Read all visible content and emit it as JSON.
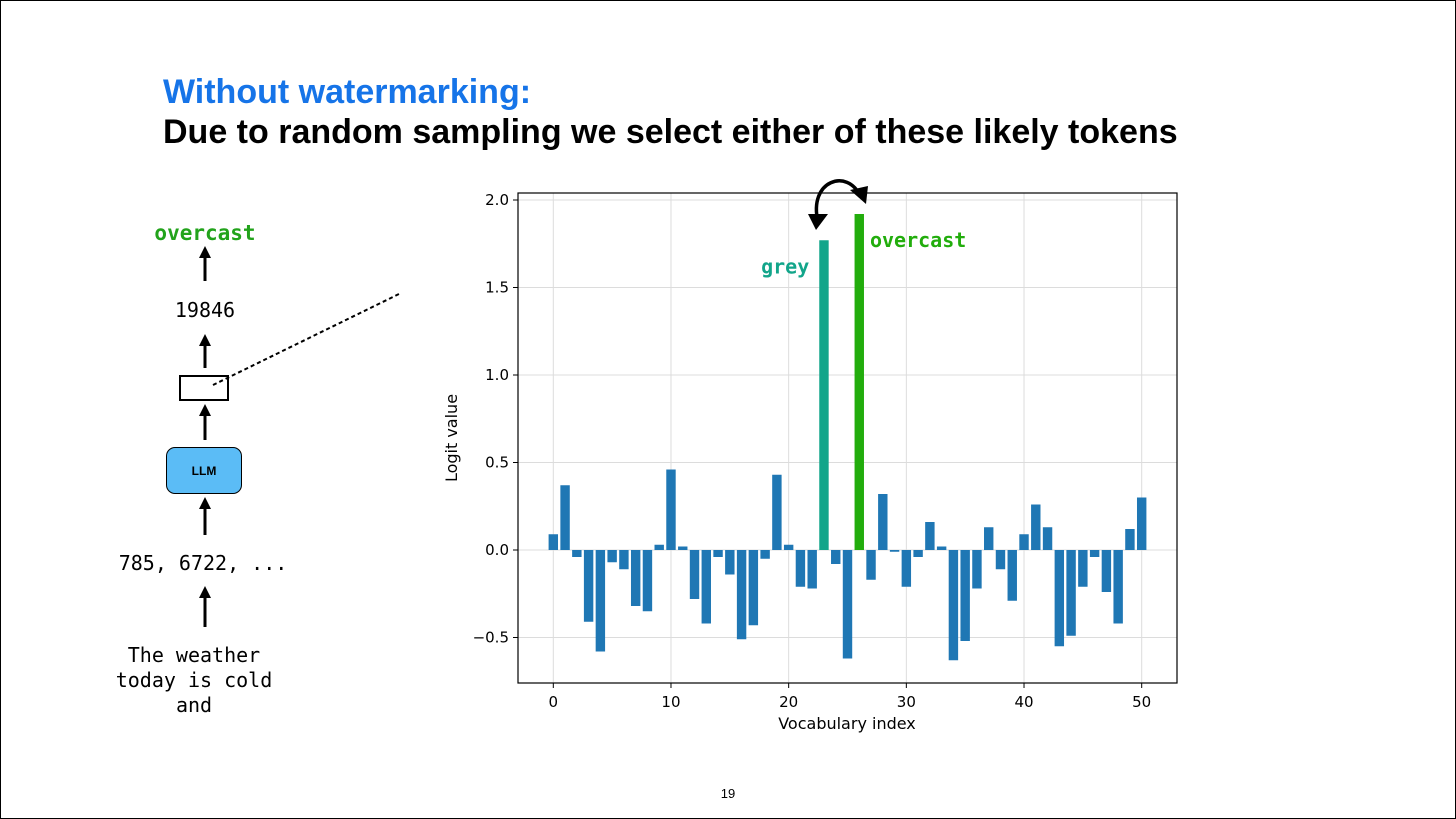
{
  "slide": {
    "title_blue": "Without watermarking:",
    "title_black": "Due to random sampling we select either of these likely tokens",
    "page_number": "19"
  },
  "pipeline": {
    "output_token": "overcast",
    "token_id": "19846",
    "model_label": "LLM",
    "input_ids": "785, 6722, ...",
    "prompt": "The weather\ntoday is cold\nand"
  },
  "colors": {
    "title_blue": "#1674e8",
    "bar_default": "#1f77b4",
    "grey_bar": "#12a58a",
    "overcast_bar": "#22ad0c",
    "llm_box": "#5bbcf6"
  },
  "chart_data": {
    "type": "bar",
    "xlabel": "Vocabulary index",
    "ylabel": "Logit value",
    "xlim": [
      -3,
      53
    ],
    "ylim": [
      -0.76,
      2.04
    ],
    "xticks": [
      0,
      10,
      20,
      30,
      40,
      50
    ],
    "yticks": [
      -0.5,
      0.0,
      0.5,
      1.0,
      1.5,
      2.0
    ],
    "grid": true,
    "x": [
      0,
      1,
      2,
      3,
      4,
      5,
      6,
      7,
      8,
      9,
      10,
      11,
      12,
      13,
      14,
      15,
      16,
      17,
      18,
      19,
      20,
      21,
      22,
      23,
      24,
      25,
      26,
      27,
      28,
      29,
      30,
      31,
      32,
      33,
      34,
      35,
      36,
      37,
      38,
      39,
      40,
      41,
      42,
      43,
      44,
      45,
      46,
      47,
      48,
      49,
      50
    ],
    "values": [
      0.09,
      0.37,
      -0.04,
      -0.41,
      -0.58,
      -0.07,
      -0.11,
      -0.32,
      -0.35,
      0.03,
      0.46,
      0.02,
      -0.28,
      -0.42,
      -0.04,
      -0.14,
      -0.51,
      -0.43,
      -0.05,
      0.43,
      0.03,
      -0.21,
      -0.22,
      1.77,
      -0.08,
      -0.62,
      1.92,
      -0.17,
      0.32,
      -0.01,
      -0.21,
      -0.04,
      0.16,
      0.02,
      -0.63,
      -0.52,
      -0.22,
      0.13,
      -0.11,
      -0.29,
      0.09,
      0.26,
      0.13,
      -0.55,
      -0.49,
      -0.21,
      -0.04,
      -0.24,
      -0.42,
      0.12,
      0.3
    ],
    "highlights": [
      {
        "index": 23,
        "label": "grey",
        "color": "#12a58a"
      },
      {
        "index": 26,
        "label": "overcast",
        "color": "#22ad0c"
      }
    ]
  }
}
